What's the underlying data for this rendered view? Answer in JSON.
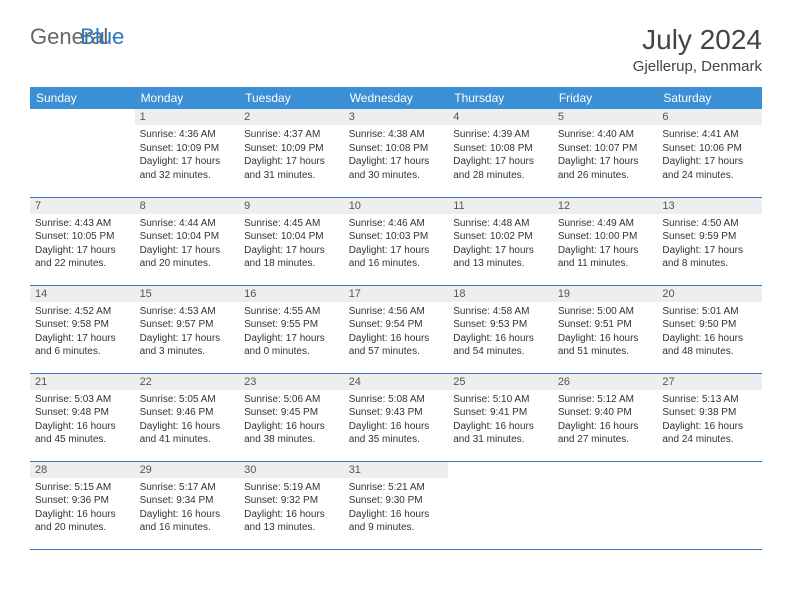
{
  "brand": {
    "text_gray": "General",
    "text_blue": "Blue"
  },
  "title": "July 2024",
  "location": "Gjellerup, Denmark",
  "header_bg": "#3b8fd4",
  "header_text_color": "#ffffff",
  "daynum_bg": "#eceeef",
  "rule_color": "#3b78b5",
  "logo_mark_color": "#2b78c2",
  "day_headers": [
    "Sunday",
    "Monday",
    "Tuesday",
    "Wednesday",
    "Thursday",
    "Friday",
    "Saturday"
  ],
  "weeks": [
    [
      null,
      {
        "n": "1",
        "sr": "4:36 AM",
        "ss": "10:09 PM",
        "dl": "17 hours and 32 minutes."
      },
      {
        "n": "2",
        "sr": "4:37 AM",
        "ss": "10:09 PM",
        "dl": "17 hours and 31 minutes."
      },
      {
        "n": "3",
        "sr": "4:38 AM",
        "ss": "10:08 PM",
        "dl": "17 hours and 30 minutes."
      },
      {
        "n": "4",
        "sr": "4:39 AM",
        "ss": "10:08 PM",
        "dl": "17 hours and 28 minutes."
      },
      {
        "n": "5",
        "sr": "4:40 AM",
        "ss": "10:07 PM",
        "dl": "17 hours and 26 minutes."
      },
      {
        "n": "6",
        "sr": "4:41 AM",
        "ss": "10:06 PM",
        "dl": "17 hours and 24 minutes."
      }
    ],
    [
      {
        "n": "7",
        "sr": "4:43 AM",
        "ss": "10:05 PM",
        "dl": "17 hours and 22 minutes."
      },
      {
        "n": "8",
        "sr": "4:44 AM",
        "ss": "10:04 PM",
        "dl": "17 hours and 20 minutes."
      },
      {
        "n": "9",
        "sr": "4:45 AM",
        "ss": "10:04 PM",
        "dl": "17 hours and 18 minutes."
      },
      {
        "n": "10",
        "sr": "4:46 AM",
        "ss": "10:03 PM",
        "dl": "17 hours and 16 minutes."
      },
      {
        "n": "11",
        "sr": "4:48 AM",
        "ss": "10:02 PM",
        "dl": "17 hours and 13 minutes."
      },
      {
        "n": "12",
        "sr": "4:49 AM",
        "ss": "10:00 PM",
        "dl": "17 hours and 11 minutes."
      },
      {
        "n": "13",
        "sr": "4:50 AM",
        "ss": "9:59 PM",
        "dl": "17 hours and 8 minutes."
      }
    ],
    [
      {
        "n": "14",
        "sr": "4:52 AM",
        "ss": "9:58 PM",
        "dl": "17 hours and 6 minutes."
      },
      {
        "n": "15",
        "sr": "4:53 AM",
        "ss": "9:57 PM",
        "dl": "17 hours and 3 minutes."
      },
      {
        "n": "16",
        "sr": "4:55 AM",
        "ss": "9:55 PM",
        "dl": "17 hours and 0 minutes."
      },
      {
        "n": "17",
        "sr": "4:56 AM",
        "ss": "9:54 PM",
        "dl": "16 hours and 57 minutes."
      },
      {
        "n": "18",
        "sr": "4:58 AM",
        "ss": "9:53 PM",
        "dl": "16 hours and 54 minutes."
      },
      {
        "n": "19",
        "sr": "5:00 AM",
        "ss": "9:51 PM",
        "dl": "16 hours and 51 minutes."
      },
      {
        "n": "20",
        "sr": "5:01 AM",
        "ss": "9:50 PM",
        "dl": "16 hours and 48 minutes."
      }
    ],
    [
      {
        "n": "21",
        "sr": "5:03 AM",
        "ss": "9:48 PM",
        "dl": "16 hours and 45 minutes."
      },
      {
        "n": "22",
        "sr": "5:05 AM",
        "ss": "9:46 PM",
        "dl": "16 hours and 41 minutes."
      },
      {
        "n": "23",
        "sr": "5:06 AM",
        "ss": "9:45 PM",
        "dl": "16 hours and 38 minutes."
      },
      {
        "n": "24",
        "sr": "5:08 AM",
        "ss": "9:43 PM",
        "dl": "16 hours and 35 minutes."
      },
      {
        "n": "25",
        "sr": "5:10 AM",
        "ss": "9:41 PM",
        "dl": "16 hours and 31 minutes."
      },
      {
        "n": "26",
        "sr": "5:12 AM",
        "ss": "9:40 PM",
        "dl": "16 hours and 27 minutes."
      },
      {
        "n": "27",
        "sr": "5:13 AM",
        "ss": "9:38 PM",
        "dl": "16 hours and 24 minutes."
      }
    ],
    [
      {
        "n": "28",
        "sr": "5:15 AM",
        "ss": "9:36 PM",
        "dl": "16 hours and 20 minutes."
      },
      {
        "n": "29",
        "sr": "5:17 AM",
        "ss": "9:34 PM",
        "dl": "16 hours and 16 minutes."
      },
      {
        "n": "30",
        "sr": "5:19 AM",
        "ss": "9:32 PM",
        "dl": "16 hours and 13 minutes."
      },
      {
        "n": "31",
        "sr": "5:21 AM",
        "ss": "9:30 PM",
        "dl": "16 hours and 9 minutes."
      },
      null,
      null,
      null
    ]
  ],
  "labels": {
    "sunrise": "Sunrise: ",
    "sunset": "Sunset: ",
    "daylight": "Daylight: "
  }
}
